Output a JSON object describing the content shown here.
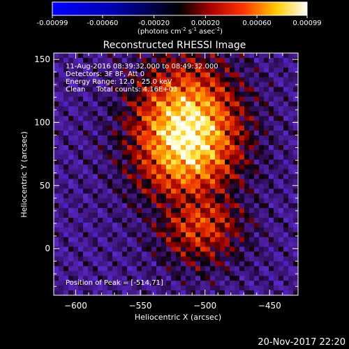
{
  "colorbar": {
    "ticks": [
      "-0.00099",
      "-0.00060",
      "-0.00020",
      "0.00020",
      "0.00060",
      "0.00099"
    ],
    "tick_values": [
      -0.00099,
      -0.0006,
      -0.0002,
      0.0002,
      0.0006,
      0.00099
    ],
    "range": [
      -0.00099,
      0.00099
    ],
    "units_text": "(photons cm",
    "units_sup1": "-2",
    "units_mid": " s",
    "units_sup2": "-1",
    "units_end": " asec",
    "units_sup3": "-2",
    "units_close": ")",
    "colors": [
      "#0000ff",
      "#000000",
      "#ff0000",
      "#ffff00",
      "#ffffff"
    ]
  },
  "chart_data": {
    "type": "heatmap",
    "title": "Reconstructed RHESSI Image",
    "xlabel": "Heliocentric X (arcsec)",
    "ylabel": "Heliocentric Y (arcsec)",
    "xlim": [
      -617,
      -428
    ],
    "ylim": [
      -37,
      155
    ],
    "x_ticks": [
      -600,
      -550,
      -500,
      -450
    ],
    "y_ticks": [
      0,
      50,
      100,
      150
    ],
    "x_tick_labels": [
      "−600",
      "−550",
      "−500",
      "−450"
    ],
    "y_tick_labels": [
      "0",
      "50",
      "100",
      "150"
    ],
    "annotations": [
      "11-Aug-2016 08:39:32.000 to 08:49:32.000",
      "Detectors: 3F 8F, Att 0",
      "Energy Range: 12.0 - 25.0 keV",
      "Clean     Total counts: 4.16E+03"
    ],
    "peak_label": "Position of Peak = [-514,71]",
    "peak": [
      -514,
      71
    ]
  },
  "footer": {
    "timestamp": "20-Nov-2017 22:20"
  }
}
